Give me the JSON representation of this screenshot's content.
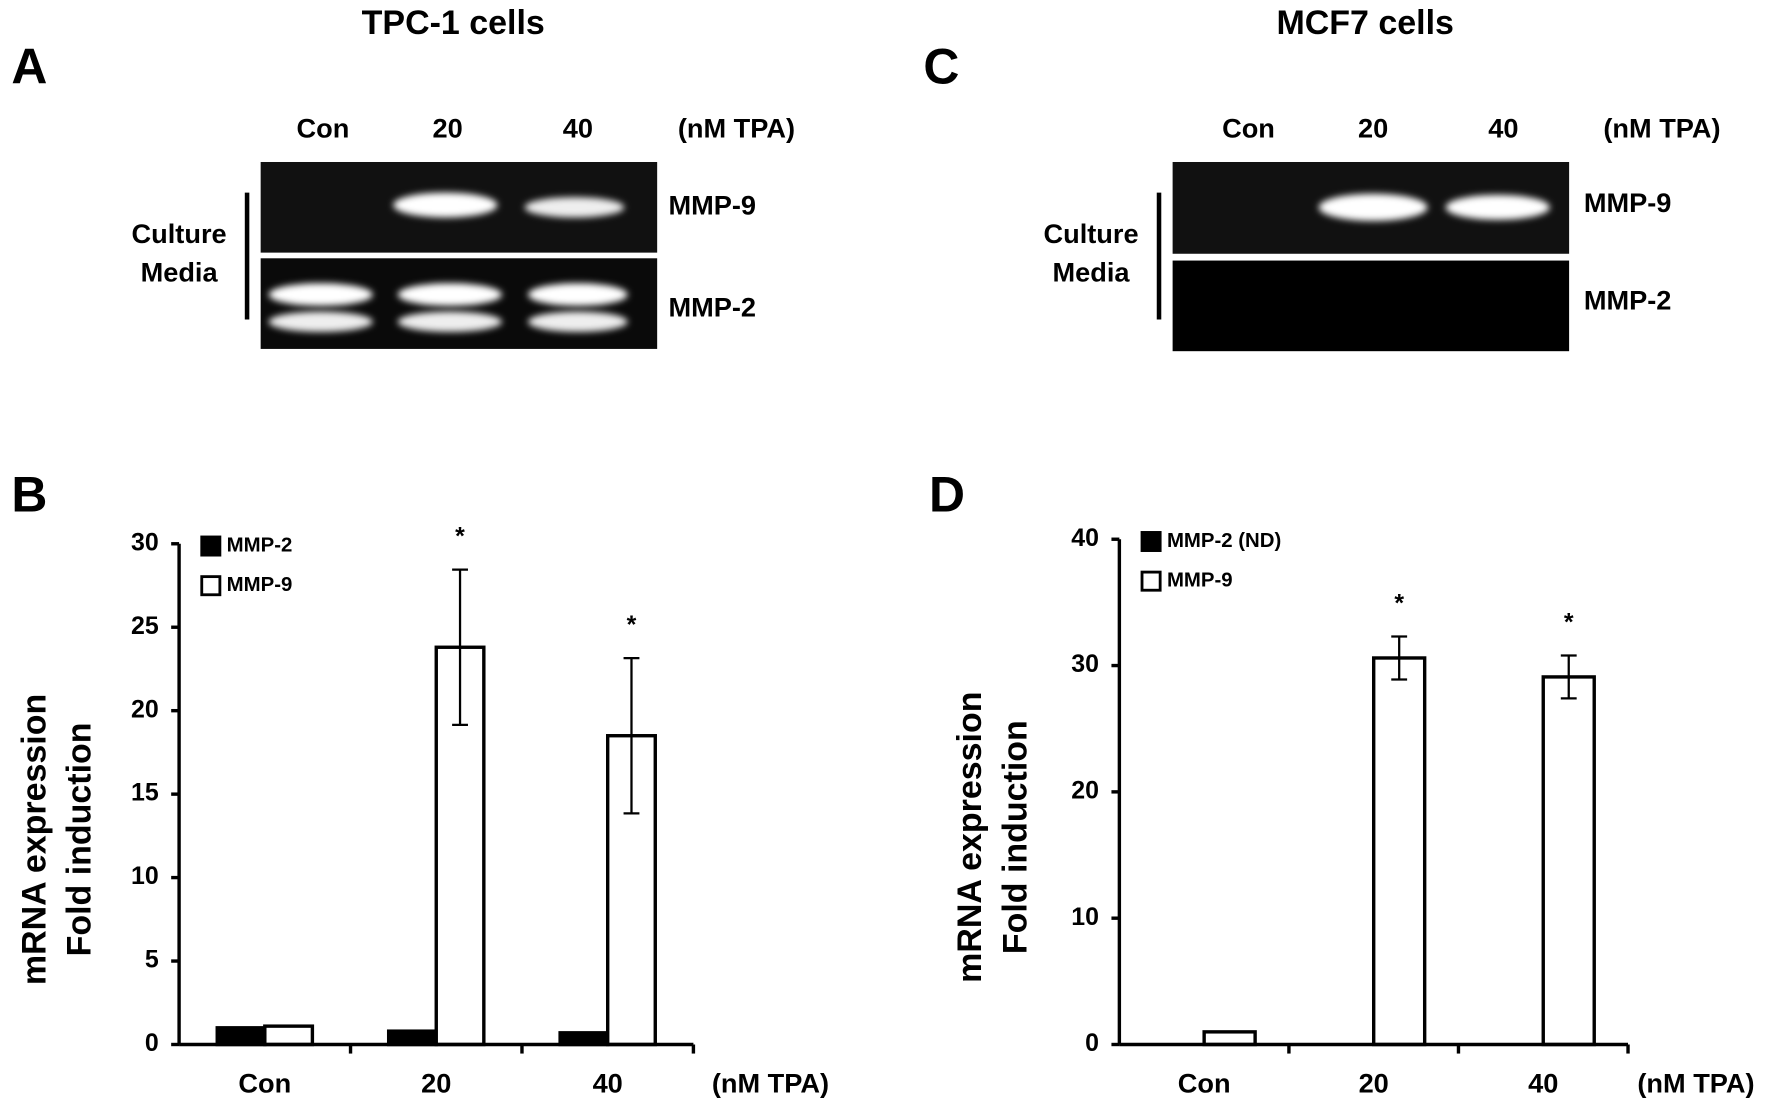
{
  "gels": [
    {
      "panel": "A",
      "title": "TPC-1 cells",
      "lanes": [
        "Con",
        "20",
        "40"
      ],
      "unit": "(nM TPA)",
      "group_label": [
        "Culture",
        "Media"
      ],
      "bands": [
        "MMP-9",
        "MMP-2"
      ]
    },
    {
      "panel": "C",
      "title": "MCF7 cells",
      "lanes": [
        "Con",
        "20",
        "40"
      ],
      "unit": "(nM TPA)",
      "group_label": [
        "Culture",
        "Media"
      ],
      "bands": [
        "MMP-9",
        "MMP-2"
      ]
    }
  ],
  "chart_data": [
    {
      "type": "bar",
      "panel": "B",
      "ylabel": [
        "mRNA expression",
        "Fold induction"
      ],
      "xlabel": "(nM TPA)",
      "categories": [
        "Con",
        "20",
        "40"
      ],
      "series": [
        {
          "name": "MMP-2",
          "color": "#000000",
          "values": [
            1,
            0.8,
            0.7
          ],
          "errors": [
            null,
            null,
            null
          ]
        },
        {
          "name": "MMP-9",
          "color": "#ffffff",
          "values": [
            1.1,
            23.8,
            18.5
          ],
          "errors": [
            null,
            4.65,
            4.65
          ]
        }
      ],
      "annotations": [
        {
          "text": "*",
          "category": "20",
          "series": "MMP-9"
        },
        {
          "text": "*",
          "category": "40",
          "series": "MMP-9"
        }
      ],
      "ylim": [
        0,
        30
      ],
      "yticks": [
        0,
        5,
        10,
        15,
        20,
        25,
        30
      ],
      "legend": "top-left"
    },
    {
      "type": "bar",
      "panel": "D",
      "ylabel": [
        "mRNA expression",
        "Fold induction"
      ],
      "xlabel": "(nM TPA)",
      "categories": [
        "Con",
        "20",
        "40"
      ],
      "series": [
        {
          "name": "MMP-2 (ND)",
          "color": "#000000",
          "values": [
            null,
            null,
            null
          ],
          "errors": [
            null,
            null,
            null
          ]
        },
        {
          "name": "MMP-9",
          "color": "#ffffff",
          "values": [
            1,
            30.6,
            29.1
          ],
          "errors": [
            null,
            1.7,
            1.7
          ]
        }
      ],
      "annotations": [
        {
          "text": "*",
          "category": "20",
          "series": "MMP-9"
        },
        {
          "text": "*",
          "category": "40",
          "series": "MMP-9"
        }
      ],
      "ylim": [
        0,
        40
      ],
      "yticks": [
        0,
        10,
        20,
        30,
        40
      ],
      "legend": "top-left"
    }
  ]
}
